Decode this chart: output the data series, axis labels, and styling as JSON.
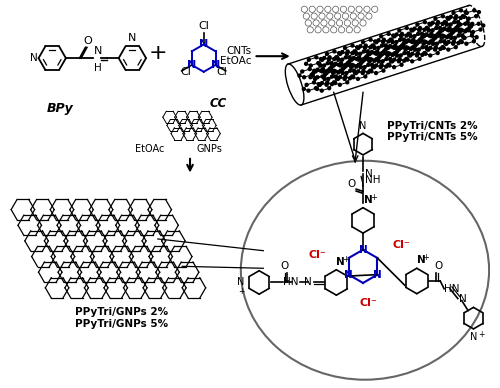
{
  "bg_color": "#ffffff",
  "blue_color": "#0000bb",
  "red_color": "#cc0000",
  "black": "#000000",
  "cnt_label": "PPyTri/CNTs 2%\nPPyTri/CNTs 5%",
  "gnp_label": "PPyTri/GNPs 2%\nPPyTri/GNPs 5%",
  "bpy_label": "BPy",
  "cc_label": "CC",
  "figsize": [
    5.0,
    3.88
  ],
  "dpi": 100
}
